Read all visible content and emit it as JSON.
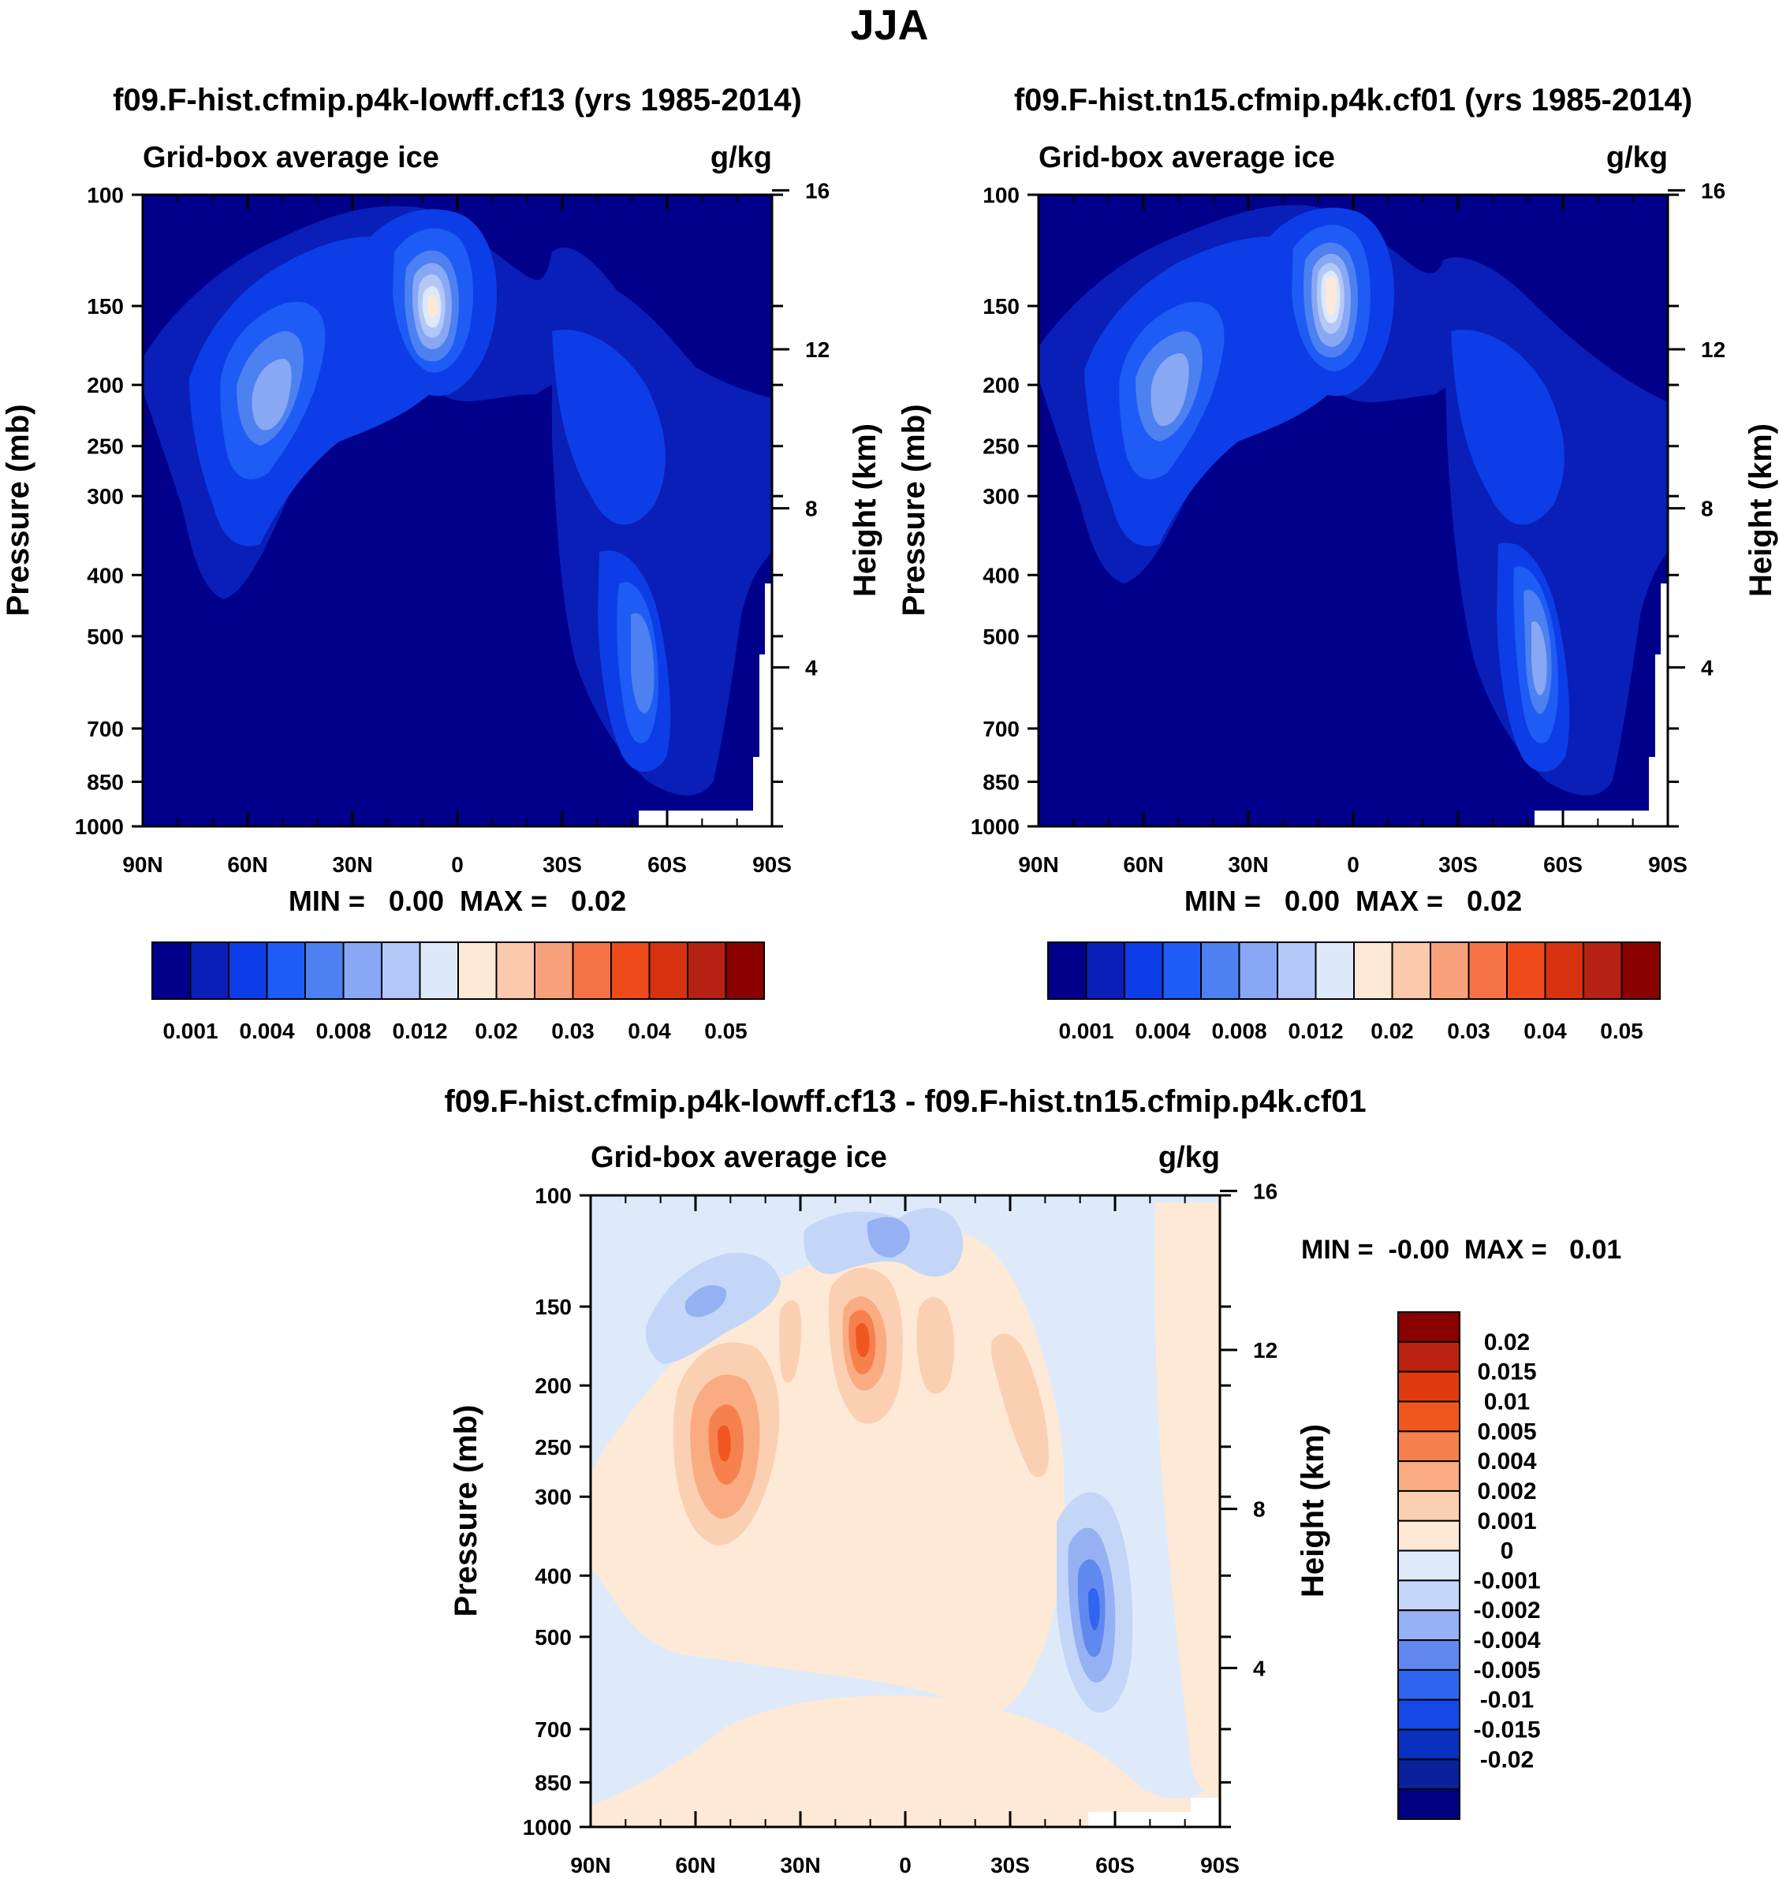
{
  "page_title": "JJA",
  "colors": {
    "sequential": [
      "#00008b",
      "#0a1fb8",
      "#0d3de6",
      "#1e5cf5",
      "#4d80f0",
      "#88a8f5",
      "#b3c8f7",
      "#dde9fa",
      "#fde9d6",
      "#fbc9ab",
      "#f8a07a",
      "#f57346",
      "#ef4a1c",
      "#d63210",
      "#b52113",
      "#8b0000"
    ],
    "diverging": [
      "#000080",
      "#08209a",
      "#0a30c0",
      "#1648e6",
      "#2f65f0",
      "#6088ee",
      "#95b1f3",
      "#c4d6f8",
      "#deeafa",
      "#fde9d6",
      "#fbcfb2",
      "#f9ac82",
      "#f6804e",
      "#f0561f",
      "#df3a0e",
      "#b92310",
      "#8b0000"
    ]
  },
  "chart_data": [
    {
      "type": "contour",
      "title": "f09.F-hist.cfmip.p4k-lowff.cf13 (yrs 1985-2014)",
      "left_label": "Grid-box average ice",
      "units": "g/kg",
      "ylabel": "Pressure (mb)",
      "ylabel_right": "Height (km)",
      "x_ticks": [
        "90N",
        "60N",
        "30N",
        "0",
        "30S",
        "60S",
        "90S"
      ],
      "y_ticks": [
        "100",
        "150",
        "200",
        "250",
        "300",
        "400",
        "500",
        "700",
        "850",
        "1000"
      ],
      "y_right_ticks": [
        "16",
        "12",
        "8",
        "4"
      ],
      "ylim": [
        1000,
        100
      ],
      "minmax": "MIN =   0.00  MAX =   0.02",
      "colorbar_labels": [
        "0.001",
        "0.004",
        "0.008",
        "0.012",
        "0.02",
        "0.03",
        "0.04",
        "0.05"
      ]
    },
    {
      "type": "contour",
      "title": "f09.F-hist.tn15.cfmip.p4k.cf01 (yrs 1985-2014)",
      "left_label": "Grid-box average ice",
      "units": "g/kg",
      "ylabel": "Pressure (mb)",
      "ylabel_right": "Height (km)",
      "x_ticks": [
        "90N",
        "60N",
        "30N",
        "0",
        "30S",
        "60S",
        "90S"
      ],
      "y_ticks": [
        "100",
        "150",
        "200",
        "250",
        "300",
        "400",
        "500",
        "700",
        "850",
        "1000"
      ],
      "y_right_ticks": [
        "16",
        "12",
        "8",
        "4"
      ],
      "ylim": [
        1000,
        100
      ],
      "minmax": "MIN =   0.00  MAX =   0.02",
      "colorbar_labels": [
        "0.001",
        "0.004",
        "0.008",
        "0.012",
        "0.02",
        "0.03",
        "0.04",
        "0.05"
      ]
    },
    {
      "type": "contour",
      "title": "f09.F-hist.cfmip.p4k-lowff.cf13 - f09.F-hist.tn15.cfmip.p4k.cf01",
      "left_label": "Grid-box average ice",
      "units": "g/kg",
      "ylabel": "Pressure (mb)",
      "ylabel_right": "Height (km)",
      "x_ticks": [
        "90N",
        "60N",
        "30N",
        "0",
        "30S",
        "60S",
        "90S"
      ],
      "y_ticks": [
        "100",
        "150",
        "200",
        "250",
        "300",
        "400",
        "500",
        "700",
        "850",
        "1000"
      ],
      "y_right_ticks": [
        "16",
        "12",
        "8",
        "4"
      ],
      "ylim": [
        1000,
        100
      ],
      "minmax": "MIN =  -0.00  MAX =   0.01",
      "colorbar_labels": [
        "0.02",
        "0.015",
        "0.01",
        "0.005",
        "0.004",
        "0.002",
        "0.001",
        "0",
        "-0.001",
        "-0.002",
        "-0.004",
        "-0.005",
        "-0.01",
        "-0.015",
        "-0.02"
      ]
    }
  ]
}
